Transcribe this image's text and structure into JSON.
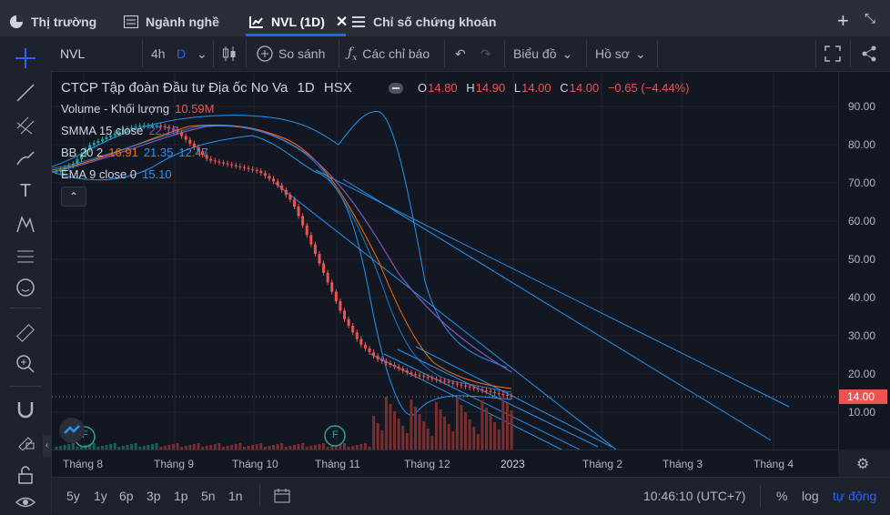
{
  "tabs": [
    {
      "label": "Thị trường",
      "icon": "pie-chart-icon"
    },
    {
      "label": "Ngành nghề",
      "icon": "list-icon"
    },
    {
      "label": "NVL (1D)",
      "icon": "chart-icon",
      "active": true
    },
    {
      "label": "Chỉ số chứng khoán",
      "icon": "menu-icon"
    }
  ],
  "toolbar": {
    "symbol": "NVL",
    "interval": "4h",
    "interval_selected": "D",
    "compare_label": "So sánh",
    "indicators_label": "Các chỉ báo",
    "chart_type_label": "Biểu đồ",
    "profile_label": "Hồ sơ"
  },
  "legend": {
    "title": "CTCP Tập đoàn Đầu tư Địa ốc No Va",
    "interval": "1D",
    "exchange": "HSX",
    "o_label": "O",
    "o": "14.80",
    "h_label": "H",
    "h": "14.90",
    "l_label": "L",
    "l": "14.00",
    "c_label": "C",
    "c": "14.00",
    "change": "−0.65 (−4.44%)",
    "volume_label": "Volume - Khối lượng",
    "volume_value": "10.59M",
    "smma_label": "SMMA 15 close",
    "smma_value": "22.16",
    "bb_label": "BB 20 2",
    "bb_v1": "16.91",
    "bb_v2": "21.35",
    "bb_v3": "12.47",
    "ema_label": "EMA 9 close 0",
    "ema_value": "15.10"
  },
  "price_axis": [
    "90.00",
    "80.00",
    "70.00",
    "60.00",
    "50.00",
    "40.00",
    "30.00",
    "20.00",
    "10.00"
  ],
  "last_price": "14.00",
  "time_axis": [
    "Tháng 8",
    "Tháng 9",
    "Tháng 10",
    "Tháng 11",
    "Tháng 12",
    "2023",
    "Tháng 2",
    "Tháng 3",
    "Tháng 4"
  ],
  "markers": {
    "f1": "F",
    "f2": "F"
  },
  "bottom": {
    "ranges": [
      "5y",
      "1y",
      "6p",
      "3p",
      "1p",
      "5n",
      "1n"
    ],
    "time": "10:46:10 (UTC+7)",
    "percent": "%",
    "log": "log",
    "auto": "tự động"
  },
  "colors": {
    "up": "#26a69a",
    "down": "#ef5350",
    "bb": "#2196f3",
    "smma": "#7e57c2",
    "bb_basis": "#ff6d00",
    "accent": "#2962ff"
  },
  "chart_data": {
    "type": "candlestick",
    "ylim": [
      0,
      95
    ],
    "x_range": [
      "Tháng 8",
      "Tháng 4"
    ],
    "candles_approx_close": [
      73,
      75,
      80,
      82,
      84,
      85,
      85,
      84,
      80,
      76,
      75,
      74,
      73,
      70,
      65,
      55,
      45,
      35,
      28,
      24,
      22,
      20,
      19,
      18,
      17,
      16,
      15,
      14
    ]
  }
}
